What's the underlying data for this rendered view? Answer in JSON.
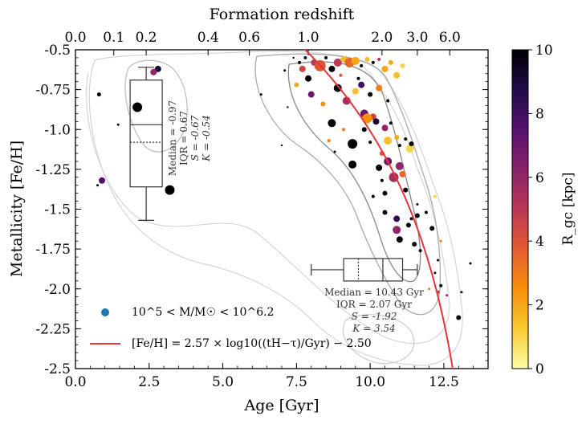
{
  "chart_data": {
    "type": "scatter",
    "xlabel": "Age [Gyr]",
    "ylabel": "Metallicity [Fe/H]",
    "top_axis_label": "Formation redshift",
    "xlim": [
      0,
      14
    ],
    "ylim": [
      -2.5,
      -0.5
    ],
    "x_ticks": [
      0,
      2.5,
      5,
      7.5,
      10,
      12.5
    ],
    "x_tick_labels": [
      "0.0",
      "2.5",
      "5.0",
      "7.5",
      "10.0",
      "12.5"
    ],
    "y_ticks": [
      -0.5,
      -0.75,
      -1.0,
      -1.25,
      -1.5,
      -1.75,
      -2.0,
      -2.25,
      -2.5
    ],
    "y_tick_labels": [
      "-0.5",
      "-0.75",
      "-1.0",
      "-1.25",
      "-1.5",
      "-1.75",
      "-2.0",
      "-2.25",
      "-2.5"
    ],
    "top_ticks": [
      {
        "age": 0.0,
        "label": "0.0"
      },
      {
        "age": 1.3,
        "label": "0.1"
      },
      {
        "age": 2.4,
        "label": "0.2"
      },
      {
        "age": 4.5,
        "label": "0.4"
      },
      {
        "age": 5.9,
        "label": "0.6"
      },
      {
        "age": 7.9,
        "label": "1.0"
      },
      {
        "age": 10.4,
        "label": "2.0"
      },
      {
        "age": 11.6,
        "label": "3.0"
      },
      {
        "age": 12.7,
        "label": "6.0"
      }
    ],
    "colorbar": {
      "label": "R_gc [kpc]",
      "min": 0,
      "max": 10,
      "ticks": [
        0,
        2,
        4,
        6,
        8,
        10
      ],
      "tick_labels": [
        "0",
        "2",
        "4",
        "6",
        "8",
        "10"
      ],
      "colors": [
        "#fcffa4",
        "#f9c932",
        "#f98e09",
        "#e55c30",
        "#bc3754",
        "#89226a",
        "#57106e",
        "#210c4a",
        "#000004"
      ]
    },
    "fit": {
      "label": "[Fe/H] = 2.57 × log10((tH−τ)/Gyr) − 2.50",
      "a": 2.57,
      "b": -2.5,
      "t_H": 13.8,
      "color": "#e8333a"
    },
    "legend": [
      {
        "marker": "circle",
        "color": "#1f77b4",
        "label": "10^5 < M/M☉ < 10^6.2"
      },
      {
        "marker": "line",
        "color": "#e8333a",
        "label": "[Fe/H] = 2.57 × log10((tH−τ)/Gyr) − 2.50"
      }
    ],
    "metallicity_box": {
      "x_center": 2.4,
      "whisker_low": -1.57,
      "q1": -1.36,
      "median": -0.97,
      "mean": -1.08,
      "q3": -0.69,
      "whisker_high": -0.61,
      "stats": [
        "Median = -0.97",
        "IQR = 0.67",
        "S = -0.67",
        "K = -0.54"
      ]
    },
    "age_box": {
      "y_center": -1.88,
      "whisker_low": 8.0,
      "q1": 9.1,
      "median": 10.43,
      "mean": 9.6,
      "q3": 11.1,
      "whisker_high": 11.6,
      "stats": [
        "Median = 10.43 Gyr",
        "IQR = 2.07 Gyr",
        "S = -1.92",
        "K = 3.54"
      ]
    },
    "points": [
      {
        "x": 2.8,
        "y": -0.62,
        "c": 9.0,
        "s": 4
      },
      {
        "x": 2.65,
        "y": -0.64,
        "c": 6.0,
        "s": 4
      },
      {
        "x": 2.1,
        "y": -0.86,
        "c": 10.0,
        "s": 6
      },
      {
        "x": 3.2,
        "y": -1.38,
        "c": 10.0,
        "s": 6
      },
      {
        "x": 0.9,
        "y": -1.32,
        "c": 7.5,
        "s": 4
      },
      {
        "x": 1.45,
        "y": -0.97,
        "c": 10.0,
        "s": 1.5
      },
      {
        "x": 0.8,
        "y": -0.78,
        "c": 10.0,
        "s": 2.5
      },
      {
        "x": 0.75,
        "y": -1.35,
        "c": 10.0,
        "s": 1.5
      },
      {
        "x": 6.3,
        "y": -0.78,
        "c": 10.0,
        "s": 1.5
      },
      {
        "x": 7.4,
        "y": -0.55,
        "c": 10.0,
        "s": 1.2
      },
      {
        "x": 7.1,
        "y": -0.63,
        "c": 10.0,
        "s": 1.5
      },
      {
        "x": 7.2,
        "y": -0.86,
        "c": 10.0,
        "s": 1.2
      },
      {
        "x": 7.6,
        "y": -0.58,
        "c": 10.0,
        "s": 2
      },
      {
        "x": 7.0,
        "y": -1.1,
        "c": 10.0,
        "s": 1.2
      },
      {
        "x": 7.8,
        "y": -0.55,
        "c": 9.5,
        "s": 2
      },
      {
        "x": 7.7,
        "y": -0.62,
        "c": 4.5,
        "s": 4
      },
      {
        "x": 7.5,
        "y": -0.72,
        "c": 2.0,
        "s": 3
      },
      {
        "x": 7.9,
        "y": -0.68,
        "c": 10.0,
        "s": 4
      },
      {
        "x": 8.1,
        "y": -0.58,
        "c": 5.0,
        "s": 4
      },
      {
        "x": 8.3,
        "y": -0.6,
        "c": 4.0,
        "s": 7
      },
      {
        "x": 8.5,
        "y": -0.55,
        "c": 10.0,
        "s": 2
      },
      {
        "x": 8.7,
        "y": -0.62,
        "c": 10.0,
        "s": 4
      },
      {
        "x": 8.9,
        "y": -0.58,
        "c": 5.0,
        "s": 5
      },
      {
        "x": 9.1,
        "y": -0.56,
        "c": 1.5,
        "s": 4
      },
      {
        "x": 9.3,
        "y": -0.58,
        "c": 3.5,
        "s": 6
      },
      {
        "x": 9.5,
        "y": -0.57,
        "c": 2.0,
        "s": 5
      },
      {
        "x": 9.7,
        "y": -0.6,
        "c": 10.0,
        "s": 2
      },
      {
        "x": 9.9,
        "y": -0.56,
        "c": 1.5,
        "s": 3
      },
      {
        "x": 10.1,
        "y": -0.58,
        "c": 10.0,
        "s": 2
      },
      {
        "x": 10.3,
        "y": -0.56,
        "c": 5.0,
        "s": 2
      },
      {
        "x": 10.5,
        "y": -0.62,
        "c": 2.0,
        "s": 4
      },
      {
        "x": 10.7,
        "y": -0.58,
        "c": 2.0,
        "s": 3
      },
      {
        "x": 10.9,
        "y": -0.66,
        "c": 1.5,
        "s": 4
      },
      {
        "x": 11.1,
        "y": -0.6,
        "c": 1.0,
        "s": 3
      },
      {
        "x": 8.0,
        "y": -0.78,
        "c": 7.0,
        "s": 4
      },
      {
        "x": 8.4,
        "y": -0.84,
        "c": 2.5,
        "s": 3
      },
      {
        "x": 8.9,
        "y": -0.74,
        "c": 10.0,
        "s": 5
      },
      {
        "x": 9.2,
        "y": -0.82,
        "c": 5.5,
        "s": 5
      },
      {
        "x": 9.5,
        "y": -0.76,
        "c": 1.5,
        "s": 4
      },
      {
        "x": 9.7,
        "y": -0.72,
        "c": 8.0,
        "s": 4
      },
      {
        "x": 10.0,
        "y": -0.78,
        "c": 10.0,
        "s": 3
      },
      {
        "x": 10.3,
        "y": -0.74,
        "c": 3.0,
        "s": 4
      },
      {
        "x": 10.6,
        "y": -0.82,
        "c": 10.0,
        "s": 2
      },
      {
        "x": 9.8,
        "y": -0.9,
        "c": 7.0,
        "s": 5
      },
      {
        "x": 10.1,
        "y": -0.92,
        "c": 4.5,
        "s": 4
      },
      {
        "x": 8.7,
        "y": -0.96,
        "c": 10.0,
        "s": 5
      },
      {
        "x": 9.1,
        "y": -1.0,
        "c": 3.0,
        "s": 2
      },
      {
        "x": 9.8,
        "y": -1.0,
        "c": 10.0,
        "s": 3
      },
      {
        "x": 9.9,
        "y": -0.93,
        "c": 2.5,
        "s": 6
      },
      {
        "x": 10.2,
        "y": -0.95,
        "c": 9.0,
        "s": 4
      },
      {
        "x": 10.5,
        "y": -0.99,
        "c": 6.0,
        "s": 4
      },
      {
        "x": 10.7,
        "y": -0.96,
        "c": 10.0,
        "s": 2
      },
      {
        "x": 10.9,
        "y": -1.05,
        "c": 2.0,
        "s": 3
      },
      {
        "x": 9.4,
        "y": -1.09,
        "c": 10.0,
        "s": 6
      },
      {
        "x": 10.0,
        "y": -1.08,
        "c": 10.0,
        "s": 2
      },
      {
        "x": 10.6,
        "y": -1.07,
        "c": 1.5,
        "s": 5
      },
      {
        "x": 11.0,
        "y": -1.1,
        "c": 10.0,
        "s": 2
      },
      {
        "x": 11.2,
        "y": -1.06,
        "c": 10.0,
        "s": 2
      },
      {
        "x": 11.35,
        "y": -1.12,
        "c": 1.0,
        "s": 5
      },
      {
        "x": 11.4,
        "y": -1.09,
        "c": 10.0,
        "s": 3
      },
      {
        "x": 10.4,
        "y": -1.15,
        "c": 4.0,
        "s": 3
      },
      {
        "x": 9.4,
        "y": -1.22,
        "c": 10.0,
        "s": 5
      },
      {
        "x": 10.3,
        "y": -1.24,
        "c": 10.0,
        "s": 4
      },
      {
        "x": 10.6,
        "y": -1.2,
        "c": 7.0,
        "s": 5
      },
      {
        "x": 11.0,
        "y": -1.23,
        "c": 6.0,
        "s": 5
      },
      {
        "x": 10.8,
        "y": -1.3,
        "c": 5.5,
        "s": 6
      },
      {
        "x": 11.1,
        "y": -1.28,
        "c": 3.5,
        "s": 4
      },
      {
        "x": 10.4,
        "y": -1.32,
        "c": 10.0,
        "s": 2
      },
      {
        "x": 10.5,
        "y": -1.4,
        "c": 10.0,
        "s": 3
      },
      {
        "x": 11.2,
        "y": -1.38,
        "c": 10.0,
        "s": 3
      },
      {
        "x": 10.1,
        "y": -1.42,
        "c": 10.0,
        "s": 2
      },
      {
        "x": 11.6,
        "y": -1.47,
        "c": 10.0,
        "s": 1.5
      },
      {
        "x": 12.2,
        "y": -1.42,
        "c": 1.0,
        "s": 2
      },
      {
        "x": 10.5,
        "y": -1.52,
        "c": 10.0,
        "s": 3
      },
      {
        "x": 10.9,
        "y": -1.56,
        "c": 8.5,
        "s": 4
      },
      {
        "x": 11.4,
        "y": -1.56,
        "c": 10.0,
        "s": 2
      },
      {
        "x": 11.6,
        "y": -1.54,
        "c": 10.0,
        "s": 3
      },
      {
        "x": 11.9,
        "y": -1.52,
        "c": 10.0,
        "s": 2
      },
      {
        "x": 11.3,
        "y": -1.6,
        "c": 10.0,
        "s": 3
      },
      {
        "x": 10.9,
        "y": -1.63,
        "c": 6.0,
        "s": 5
      },
      {
        "x": 12.1,
        "y": -1.62,
        "c": 10.0,
        "s": 3
      },
      {
        "x": 11.0,
        "y": -1.69,
        "c": 10.0,
        "s": 4
      },
      {
        "x": 11.5,
        "y": -1.72,
        "c": 10.0,
        "s": 3
      },
      {
        "x": 11.7,
        "y": -1.76,
        "c": 10.0,
        "s": 2
      },
      {
        "x": 12.3,
        "y": -1.82,
        "c": 10.0,
        "s": 1.5
      },
      {
        "x": 13.4,
        "y": -1.84,
        "c": 10.0,
        "s": 1.5
      },
      {
        "x": 12.2,
        "y": -1.9,
        "c": 10.0,
        "s": 1.5
      },
      {
        "x": 12.4,
        "y": -1.98,
        "c": 10.0,
        "s": 2
      },
      {
        "x": 12.0,
        "y": -2.0,
        "c": 3.0,
        "s": 1.5
      },
      {
        "x": 12.3,
        "y": -2.02,
        "c": 5.0,
        "s": 2
      },
      {
        "x": 12.6,
        "y": -2.04,
        "c": 6.0,
        "s": 1.5
      },
      {
        "x": 13.0,
        "y": -2.18,
        "c": 10.0,
        "s": 3
      },
      {
        "x": 13.1,
        "y": -2.02,
        "c": 10.0,
        "s": 1.5
      },
      {
        "x": 12.4,
        "y": -1.7,
        "c": 3.0,
        "s": 1.5
      },
      {
        "x": 8.8,
        "y": -1.14,
        "c": 10.0,
        "s": 1.5
      },
      {
        "x": 8.6,
        "y": -1.07,
        "c": 3.0,
        "s": 2
      },
      {
        "x": 9.6,
        "y": -0.68,
        "c": 10.0,
        "s": 2
      },
      {
        "x": 9.0,
        "y": -0.66,
        "c": 4.0,
        "s": 2
      }
    ]
  }
}
